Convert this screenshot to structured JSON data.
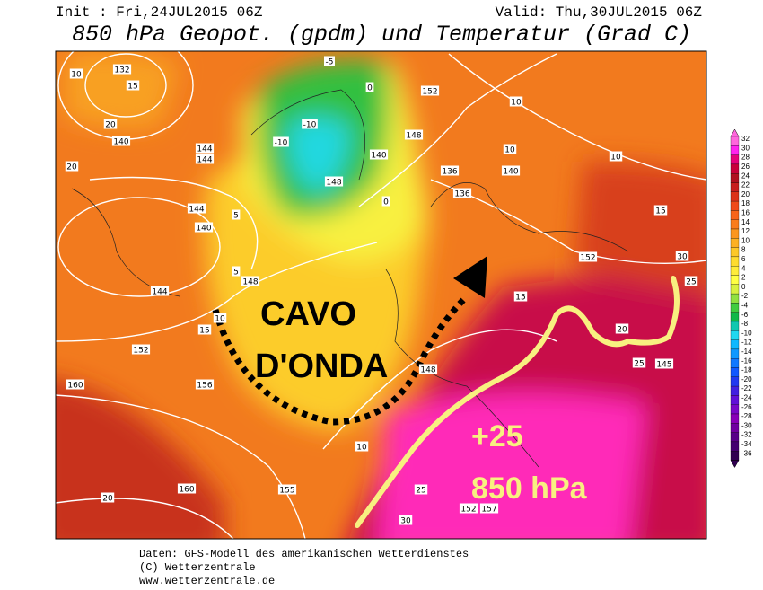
{
  "header": {
    "init": "Init : Fri,24JUL2015 06Z",
    "valid": "Valid: Thu,30JUL2015 06Z",
    "title": "850 hPa Geopot. (gpdm) und Temperatur (Grad C)"
  },
  "annotations": {
    "trough": [
      "CAVO",
      "D'ONDA"
    ],
    "heat": [
      "+25",
      "850 hPa"
    ]
  },
  "colorbar": {
    "labels": [
      32,
      30,
      28,
      26,
      24,
      22,
      20,
      18,
      16,
      14,
      12,
      10,
      8,
      6,
      4,
      2,
      0,
      -2,
      -4,
      -6,
      -8,
      -10,
      -12,
      -14,
      -16,
      -18,
      -20,
      -22,
      -24,
      -26,
      -28,
      -30,
      -32,
      -34,
      -36
    ],
    "colors": [
      "#ff66dd",
      "#ff22ee",
      "#e6007a",
      "#c8003a",
      "#b01020",
      "#c81e1e",
      "#dc3218",
      "#f04a18",
      "#f8641a",
      "#fa7c1c",
      "#fc961e",
      "#fdb022",
      "#fdc828",
      "#fedc30",
      "#feec3a",
      "#ffff44",
      "#d8f040",
      "#90e040",
      "#40cc40",
      "#10b848",
      "#10c8b0",
      "#20d8f0",
      "#10b8ff",
      "#1098ff",
      "#1078ff",
      "#1058ff",
      "#2038f0",
      "#4020e0",
      "#6010d8",
      "#7808c8",
      "#8800b8",
      "#7000a0",
      "#580088",
      "#440070",
      "#300050"
    ]
  },
  "map_labels": [
    "132",
    "15",
    "10",
    "20",
    "140",
    "20",
    "144",
    "144",
    "144",
    "140",
    "5",
    "144",
    "148",
    "5",
    "10",
    "152",
    "15",
    "160",
    "156",
    "20",
    "160",
    "155",
    "10",
    "148",
    "152",
    "148",
    "148",
    "140",
    "136",
    "136",
    "140",
    "10",
    "10",
    "15",
    "152",
    "20",
    "25",
    "145",
    "152",
    "157",
    "30",
    "25",
    "-5",
    "-10",
    "-10",
    "0",
    "0",
    "15",
    "25",
    "30",
    "10"
  ],
  "footer": [
    "Daten: GFS-Modell des amerikanischen Wetterdienstes",
    "(C) Wetterzentrale",
    "www.wetterzentrale.de"
  ]
}
